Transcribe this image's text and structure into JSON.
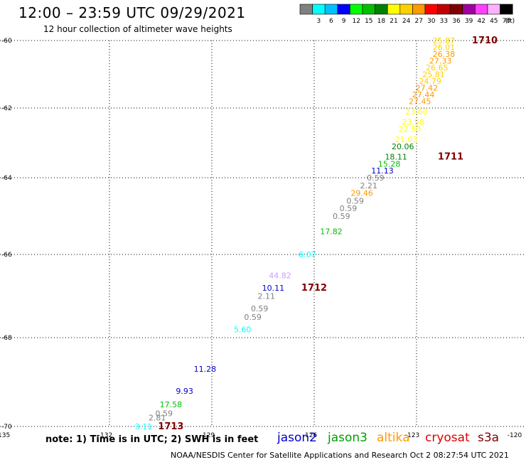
{
  "header": {
    "title": "12:00 – 23:59 UTC 09/29/2021",
    "subtitle": "12 hour collection of altimeter wave heights"
  },
  "footer": {
    "note": "note: 1) Time is in UTC; 2) SWH is in feet",
    "credit": "NOAA/NESDIS Center for Satellite Applications and Research    Oct  2 08:27:54 UTC 2021"
  },
  "satellite_legend": [
    {
      "name": "jason2",
      "color": "#0000c8"
    },
    {
      "name": "jason3",
      "color": "#00a000"
    },
    {
      "name": "altika",
      "color": "#ff9900"
    },
    {
      "name": "cryosat",
      "color": "#e00000"
    },
    {
      "name": "s3a",
      "color": "#800000"
    }
  ],
  "color_scale": {
    "unit": "(ft)",
    "bins": [
      {
        "color": "#808080",
        "label": ""
      },
      {
        "color": "#00ffff",
        "label": "3"
      },
      {
        "color": "#00c0ff",
        "label": "6"
      },
      {
        "color": "#0000ff",
        "label": "9"
      },
      {
        "color": "#00ff00",
        "label": "12"
      },
      {
        "color": "#00c000",
        "label": "15"
      },
      {
        "color": "#008000",
        "label": "18"
      },
      {
        "color": "#ffff00",
        "label": "21"
      },
      {
        "color": "#ffd000",
        "label": "24"
      },
      {
        "color": "#ff9900",
        "label": "27"
      },
      {
        "color": "#ff0000",
        "label": "30"
      },
      {
        "color": "#c00000",
        "label": "33"
      },
      {
        "color": "#800000",
        "label": "36"
      },
      {
        "color": "#a000a0",
        "label": "39"
      },
      {
        "color": "#ff40ff",
        "label": "42"
      },
      {
        "color": "#ffb0ff",
        "label": "45"
      },
      {
        "color": "#000000",
        "label": "70"
      }
    ]
  },
  "chart_data": {
    "type": "scatter",
    "x_ticks": [
      {
        "value": -135,
        "label": "-135"
      },
      {
        "value": -132,
        "label": "-132"
      },
      {
        "value": -129,
        "label": "-129"
      },
      {
        "value": -126,
        "label": "-126"
      },
      {
        "value": -123,
        "label": "-123"
      },
      {
        "value": -120,
        "label": "-120"
      }
    ],
    "y_ticks": [
      {
        "value": -60,
        "label": "-60"
      },
      {
        "value": -62,
        "label": "-62"
      },
      {
        "value": -64,
        "label": "-64"
      },
      {
        "value": -66,
        "label": "-66"
      },
      {
        "value": -68,
        "label": "-68"
      },
      {
        "value": -70,
        "label": "-70"
      }
    ],
    "xlim": [
      -135,
      -120
    ],
    "ylim": [
      -70,
      -60
    ],
    "grid": true,
    "projection": "polar stereographic",
    "points": [
      {
        "lon": -122.2,
        "lat": -60.0,
        "label": "25.87",
        "color": "#ffd000"
      },
      {
        "lon": -122.2,
        "lat": -60.2,
        "label": "26.01",
        "color": "#ffd000"
      },
      {
        "lon": -122.2,
        "lat": -60.4,
        "label": "26.38",
        "color": "#ff9900"
      },
      {
        "lon": -122.3,
        "lat": -60.6,
        "label": "27.33",
        "color": "#ff9900"
      },
      {
        "lon": -122.4,
        "lat": -60.8,
        "label": "26.65",
        "color": "#ffd000"
      },
      {
        "lon": -122.5,
        "lat": -61.0,
        "label": "25.81",
        "color": "#ffd000"
      },
      {
        "lon": -122.6,
        "lat": -61.2,
        "label": "24.79",
        "color": "#ffd000"
      },
      {
        "lon": -122.7,
        "lat": -61.4,
        "label": "27.42",
        "color": "#ff9900"
      },
      {
        "lon": -122.8,
        "lat": -61.6,
        "label": "27.44",
        "color": "#ff9900"
      },
      {
        "lon": -122.9,
        "lat": -61.8,
        "label": "27.45",
        "color": "#ff9900"
      },
      {
        "lon": -123.0,
        "lat": -62.1,
        "label": "23.60",
        "color": "#ffff00"
      },
      {
        "lon": -123.1,
        "lat": -62.4,
        "label": "23.58",
        "color": "#ffff00"
      },
      {
        "lon": -123.2,
        "lat": -62.6,
        "label": "22.50",
        "color": "#ffff00"
      },
      {
        "lon": -123.3,
        "lat": -62.9,
        "label": "21.03",
        "color": "#ffff00"
      },
      {
        "lon": -123.4,
        "lat": -63.1,
        "label": "20.06",
        "color": "#008000"
      },
      {
        "lon": -123.6,
        "lat": -63.4,
        "label": "18.11",
        "color": "#008000"
      },
      {
        "lon": -123.8,
        "lat": -63.6,
        "label": "15.28",
        "color": "#00c000"
      },
      {
        "lon": -124.0,
        "lat": -63.8,
        "label": "11.13",
        "color": "#0000c8"
      },
      {
        "lon": -124.2,
        "lat": -64.0,
        "label": "0.59",
        "color": "#808080"
      },
      {
        "lon": -124.4,
        "lat": -64.2,
        "label": "2.21",
        "color": "#808080"
      },
      {
        "lon": -124.6,
        "lat": -64.4,
        "label": "29.46",
        "color": "#ff9900"
      },
      {
        "lon": -124.8,
        "lat": -64.6,
        "label": "0.59",
        "color": "#808080"
      },
      {
        "lon": -125.0,
        "lat": -64.8,
        "label": "0.59",
        "color": "#808080"
      },
      {
        "lon": -125.2,
        "lat": -65.0,
        "label": "0.59",
        "color": "#808080"
      },
      {
        "lon": -125.5,
        "lat": -65.4,
        "label": "17.82",
        "color": "#00c000"
      },
      {
        "lon": -126.2,
        "lat": -66.0,
        "label": "6.07",
        "color": "#00ffff"
      },
      {
        "lon": -127.0,
        "lat": -66.5,
        "label": "44.82",
        "color": "#c8a0ff"
      },
      {
        "lon": -127.2,
        "lat": -66.8,
        "label": "10.11",
        "color": "#0000c8"
      },
      {
        "lon": -127.4,
        "lat": -67.0,
        "label": "2.11",
        "color": "#808080"
      },
      {
        "lon": -127.6,
        "lat": -67.3,
        "label": "0.59",
        "color": "#808080"
      },
      {
        "lon": -127.8,
        "lat": -67.5,
        "label": "0.59",
        "color": "#808080"
      },
      {
        "lon": -128.1,
        "lat": -67.8,
        "label": "5.60",
        "color": "#00ffff"
      },
      {
        "lon": -129.2,
        "lat": -68.7,
        "label": "11.28",
        "color": "#0000c8"
      },
      {
        "lon": -129.8,
        "lat": -69.2,
        "label": "9.93",
        "color": "#0000c8"
      },
      {
        "lon": -130.2,
        "lat": -69.5,
        "label": "17.58",
        "color": "#00c000"
      },
      {
        "lon": -130.4,
        "lat": -69.7,
        "label": "0.59",
        "color": "#808080"
      },
      {
        "lon": -130.6,
        "lat": -69.8,
        "label": "2.81",
        "color": "#808080"
      },
      {
        "lon": -131.0,
        "lat": -70.0,
        "label": "3.11",
        "color": "#00ffff"
      }
    ],
    "annotations": [
      {
        "lon": -121.0,
        "lat": -60.0,
        "label": "1710",
        "color": "#800000"
      },
      {
        "lon": -122.0,
        "lat": -63.4,
        "label": "1711",
        "color": "#800000"
      },
      {
        "lon": -126.0,
        "lat": -66.8,
        "label": "1712",
        "color": "#800000"
      },
      {
        "lon": -130.2,
        "lat": -70.0,
        "label": "1713",
        "color": "#800000"
      }
    ]
  }
}
